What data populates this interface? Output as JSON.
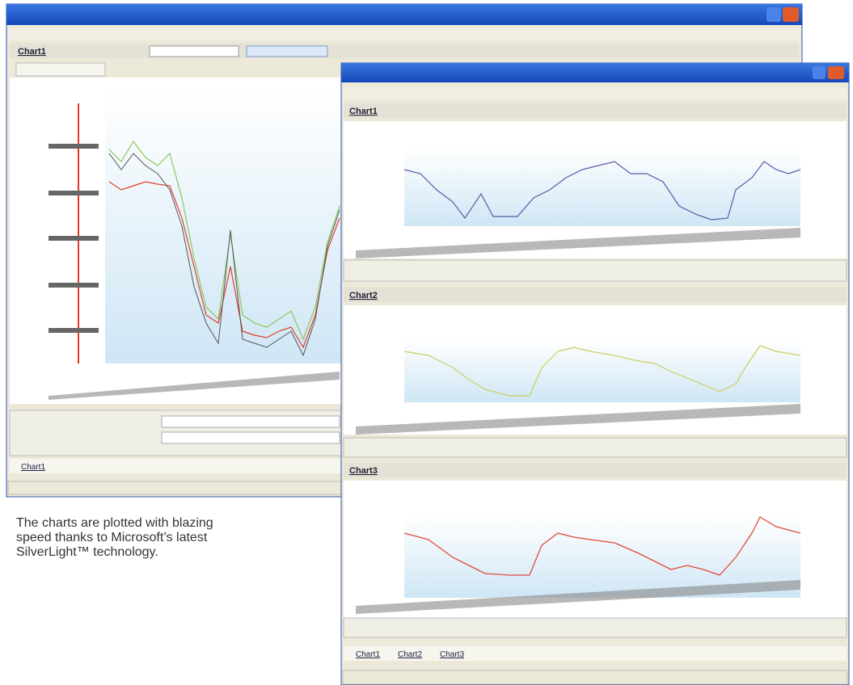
{
  "caption": [
    "The charts are plotted with blazing",
    "speed thanks to Microsoft’s latest",
    "SilverLight™ technology."
  ],
  "back_window": {
    "chart_title": "Chart1",
    "tabs": [
      "Chart1"
    ]
  },
  "front_window": {
    "charts": [
      {
        "title": "Chart1"
      },
      {
        "title": "Chart2"
      },
      {
        "title": "Chart3"
      }
    ],
    "tabs": [
      "Chart1",
      "Chart2",
      "Chart3"
    ]
  }
}
